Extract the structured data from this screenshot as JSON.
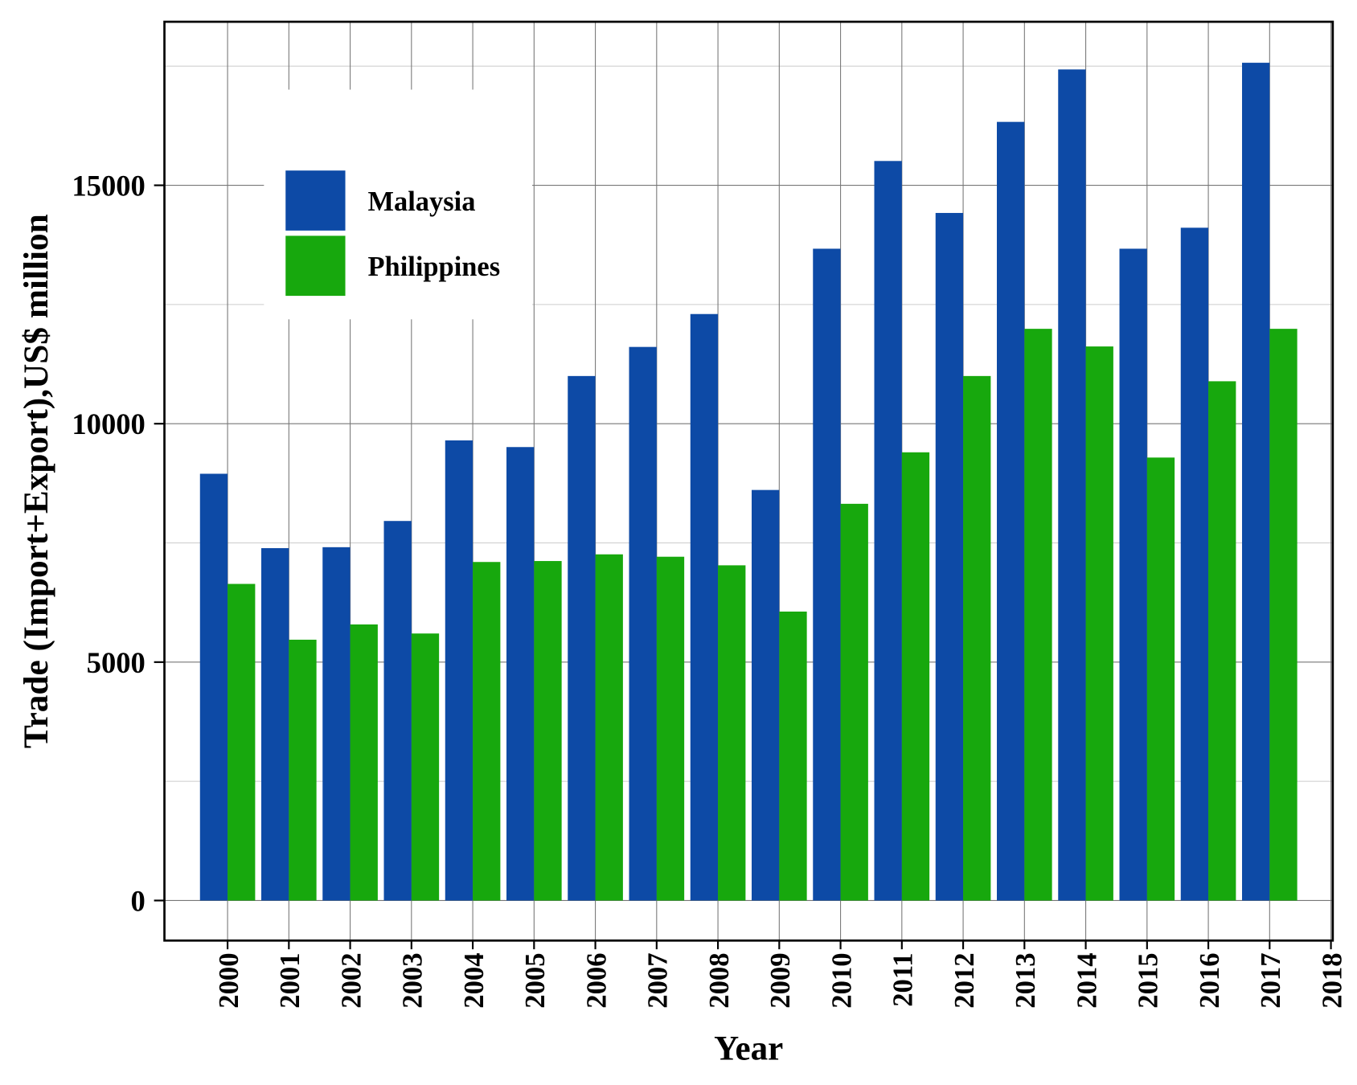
{
  "chart_data": {
    "type": "bar",
    "title": "",
    "xlabel": "Year",
    "ylabel": "Trade (Import+Export),US$ million",
    "categories": [
      "2000",
      "2001",
      "2002",
      "2003",
      "2004",
      "2005",
      "2006",
      "2007",
      "2008",
      "2009",
      "2010",
      "2011",
      "2012",
      "2013",
      "2014",
      "2015",
      "2016",
      "2017"
    ],
    "x_tick_labels": [
      "2000",
      "2001",
      "2002",
      "2003",
      "2004",
      "2005",
      "2006",
      "2007",
      "2008",
      "2009",
      "2010",
      "2011",
      "2012",
      "2013",
      "2014",
      "2015",
      "2016",
      "2017",
      "2018"
    ],
    "y_tick_labels": [
      "0",
      "5000",
      "10000",
      "15000"
    ],
    "y_ticks": [
      0,
      5000,
      10000,
      15000
    ],
    "ylim": [
      -840,
      18430
    ],
    "xlim": [
      1998.97,
      2018.03
    ],
    "grid": true,
    "legend_position": "top-left",
    "series": [
      {
        "name": "Malaysia",
        "color": "#0d4aa6",
        "values": [
          8950,
          7390,
          7410,
          7960,
          9650,
          9510,
          11000,
          11610,
          12300,
          8610,
          13670,
          15510,
          14420,
          16330,
          17430,
          13670,
          14110,
          17570
        ]
      },
      {
        "name": "Philippines",
        "color": "#17a80d",
        "values": [
          6640,
          5470,
          5790,
          5600,
          7100,
          7120,
          7260,
          7210,
          7030,
          6060,
          8320,
          9400,
          11000,
          11990,
          11620,
          9290,
          10890,
          11990
        ]
      }
    ]
  }
}
